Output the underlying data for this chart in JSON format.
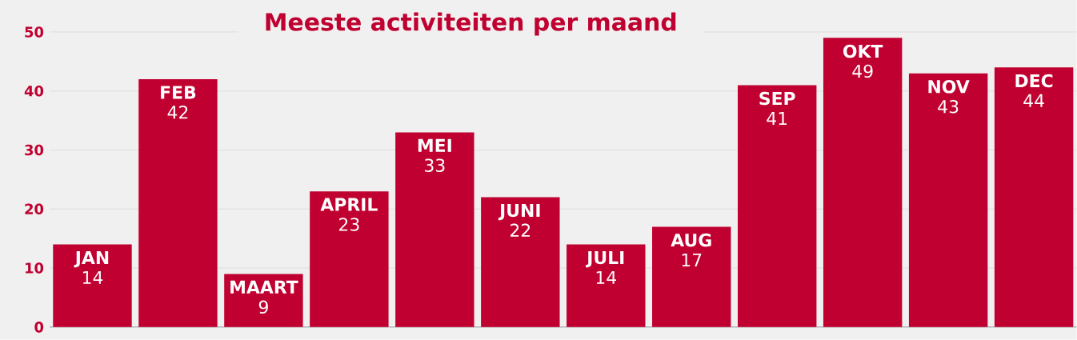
{
  "chart_data": {
    "type": "bar",
    "title": "Meeste activiteiten per maand",
    "categories": [
      "JAN",
      "FEB",
      "MAART",
      "APRIL",
      "MEI",
      "JUNI",
      "JULI",
      "AUG",
      "SEP",
      "OKT",
      "NOV",
      "DEC"
    ],
    "values": [
      14,
      42,
      9,
      23,
      33,
      22,
      14,
      17,
      41,
      49,
      43,
      44
    ],
    "value_labels": [
      "14",
      "42",
      "9",
      "23",
      "33",
      "22",
      "14",
      "17",
      "41",
      "49",
      "43",
      "44"
    ],
    "color": "#c00030",
    "ylim": [
      0,
      50
    ],
    "yticks": [
      0,
      10,
      20,
      30,
      40,
      50
    ],
    "grid": "y"
  }
}
